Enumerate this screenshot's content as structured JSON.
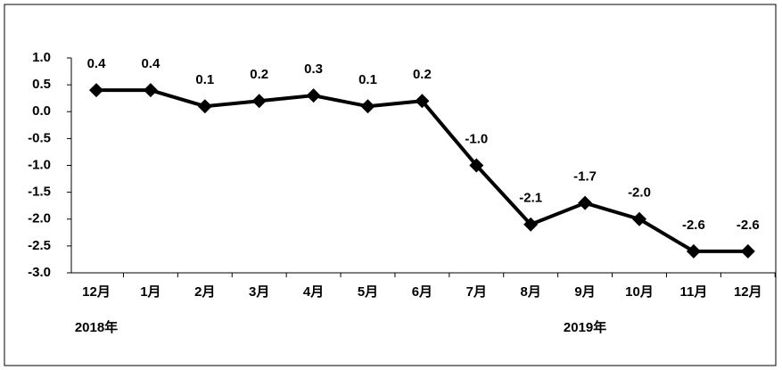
{
  "chart_data": {
    "type": "line",
    "categories": [
      "12月",
      "1月",
      "2月",
      "3月",
      "4月",
      "5月",
      "6月",
      "7月",
      "8月",
      "9月",
      "10月",
      "11月",
      "12月"
    ],
    "series": [
      {
        "name": null,
        "color": "#000000",
        "values": [
          0.4,
          0.4,
          0.1,
          0.2,
          0.3,
          0.1,
          0.2,
          -1.0,
          -2.1,
          -1.7,
          -2.0,
          -2.6,
          -2.6
        ],
        "value_labels": [
          "0.4",
          "0.4",
          "0.1",
          "0.2",
          "0.3",
          "0.1",
          "0.2",
          "-1.0",
          "-2.1",
          "-1.7",
          "-2.0",
          "-2.6",
          "-2.6"
        ]
      }
    ],
    "ylim": [
      -3.0,
      1.0
    ],
    "yticks": [
      {
        "value": 1.0,
        "label": "1.0"
      },
      0.5,
      {
        "value": 0.0,
        "label": "0.0"
      },
      -0.5,
      {
        "value": -1.0,
        "label": "-1.0"
      },
      -1.5,
      {
        "value": -2.0,
        "label": "-2.0"
      },
      -2.5,
      {
        "value": -3.0,
        "label": "-3.0"
      }
    ],
    "annotations": [
      "2018年",
      "2019年"
    ],
    "grid": false
  }
}
